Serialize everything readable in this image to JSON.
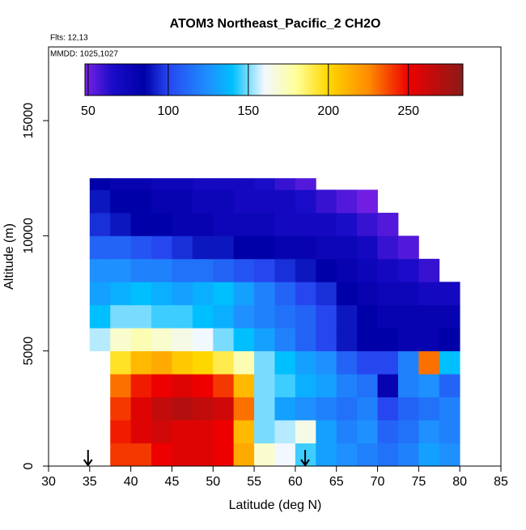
{
  "chart_data": {
    "type": "heatmap",
    "title": "ATOM3 Northeast_Pacific_2 CH2O",
    "annotations": [
      "Flts: 12,13",
      "MMDD: 1025,1027"
    ],
    "xlabel": "Latitude (deg N)",
    "ylabel": "Altitude (m)",
    "xlim": [
      30,
      85
    ],
    "xticks": [
      30,
      35,
      40,
      45,
      50,
      55,
      60,
      65,
      70,
      75,
      80,
      85
    ],
    "ylim": [
      0,
      18200
    ],
    "yticks": [
      0,
      5000,
      10000,
      15000
    ],
    "xbins": [
      35,
      37.5,
      40,
      42.5,
      45,
      47.5,
      50,
      52.5,
      55,
      57.5,
      60,
      62.5,
      65,
      67.5,
      70,
      72.5,
      75,
      77.5,
      80
    ],
    "ybins": [
      0,
      1000,
      2000,
      3000,
      4000,
      5000,
      6000,
      7000,
      8000,
      9000,
      10000,
      11000,
      12000,
      12500
    ],
    "values": [
      [
        null,
        240,
        240,
        250,
        255,
        255,
        250,
        215,
        170,
        160,
        145,
        130,
        125,
        120,
        115,
        120,
        130,
        125
      ],
      [
        null,
        245,
        255,
        260,
        255,
        255,
        250,
        210,
        150,
        155,
        165,
        130,
        120,
        125,
        110,
        115,
        125,
        120
      ],
      [
        null,
        240,
        255,
        265,
        270,
        265,
        260,
        230,
        150,
        130,
        125,
        120,
        115,
        120,
        100,
        110,
        115,
        120
      ],
      [
        null,
        230,
        245,
        250,
        255,
        250,
        240,
        210,
        150,
        145,
        135,
        130,
        120,
        115,
        80,
        120,
        125,
        110
      ],
      [
        null,
        195,
        210,
        215,
        205,
        200,
        190,
        175,
        150,
        140,
        130,
        125,
        110,
        100,
        100,
        120,
        230,
        140
      ],
      [
        155,
        170,
        175,
        170,
        165,
        160,
        150,
        140,
        130,
        120,
        110,
        100,
        90,
        85,
        85,
        80,
        80,
        85
      ],
      [
        140,
        150,
        150,
        145,
        145,
        140,
        135,
        125,
        120,
        115,
        110,
        100,
        90,
        85,
        80,
        80,
        80,
        80
      ],
      [
        130,
        135,
        140,
        135,
        130,
        135,
        140,
        130,
        120,
        110,
        100,
        95,
        85,
        80,
        75,
        75,
        70,
        70
      ],
      [
        125,
        125,
        120,
        120,
        115,
        115,
        110,
        105,
        100,
        95,
        90,
        85,
        80,
        75,
        70,
        65,
        60,
        null
      ],
      [
        110,
        110,
        105,
        100,
        95,
        90,
        90,
        85,
        85,
        80,
        80,
        75,
        75,
        70,
        60,
        55,
        null,
        null
      ],
      [
        95,
        90,
        85,
        85,
        80,
        80,
        75,
        75,
        75,
        70,
        70,
        70,
        65,
        60,
        55,
        null,
        null,
        null
      ],
      [
        90,
        85,
        85,
        80,
        80,
        75,
        75,
        70,
        70,
        70,
        65,
        60,
        55,
        50,
        null,
        null,
        null,
        null
      ],
      [
        85,
        80,
        80,
        75,
        75,
        70,
        70,
        70,
        65,
        60,
        55,
        null,
        null,
        null,
        null,
        null,
        null,
        null
      ]
    ],
    "colorscale": [
      [
        48,
        "#7b22e6"
      ],
      [
        65,
        "#1a0cc8"
      ],
      [
        85,
        "#0000a8"
      ],
      [
        100,
        "#2646f0"
      ],
      [
        125,
        "#1e90ff"
      ],
      [
        140,
        "#00bfff"
      ],
      [
        160,
        "#f2f8ff"
      ],
      [
        180,
        "#ffff99"
      ],
      [
        200,
        "#ffd700"
      ],
      [
        225,
        "#ff8c00"
      ],
      [
        250,
        "#ee0000"
      ],
      [
        284,
        "#8b1a1a"
      ]
    ],
    "colorbar_lim": [
      48,
      284
    ],
    "colorbar_ticks": [
      50,
      100,
      150,
      200,
      250
    ],
    "arrows_x": [
      34.8,
      61.2
    ]
  }
}
